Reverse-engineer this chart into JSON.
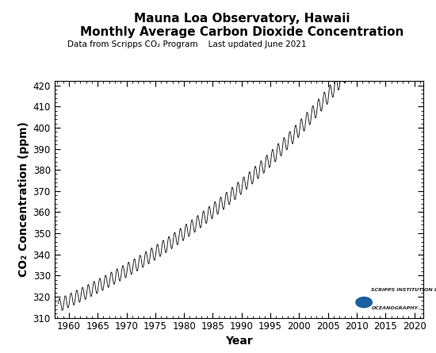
{
  "title_line1": "Mauna Loa Observatory, Hawaii",
  "title_line2": "Monthly Average Carbon Dioxide Concentration",
  "subtitle": "Data from Scripps CO₂ Program    Last updated June 2021",
  "xlabel": "Year",
  "ylabel": "CO₂ Concentration (ppm)",
  "xlim": [
    1957.5,
    2021.5
  ],
  "ylim": [
    310,
    422
  ],
  "xticks": [
    1960,
    1965,
    1970,
    1975,
    1980,
    1985,
    1990,
    1995,
    2000,
    2005,
    2010,
    2015,
    2020
  ],
  "yticks": [
    310,
    320,
    330,
    340,
    350,
    360,
    370,
    380,
    390,
    400,
    410,
    420
  ],
  "line_color": "#000000",
  "background_color": "#ffffff",
  "title_fontsize": 11,
  "subtitle_fontsize": 7.5,
  "axis_label_fontsize": 10,
  "tick_fontsize": 8.5
}
